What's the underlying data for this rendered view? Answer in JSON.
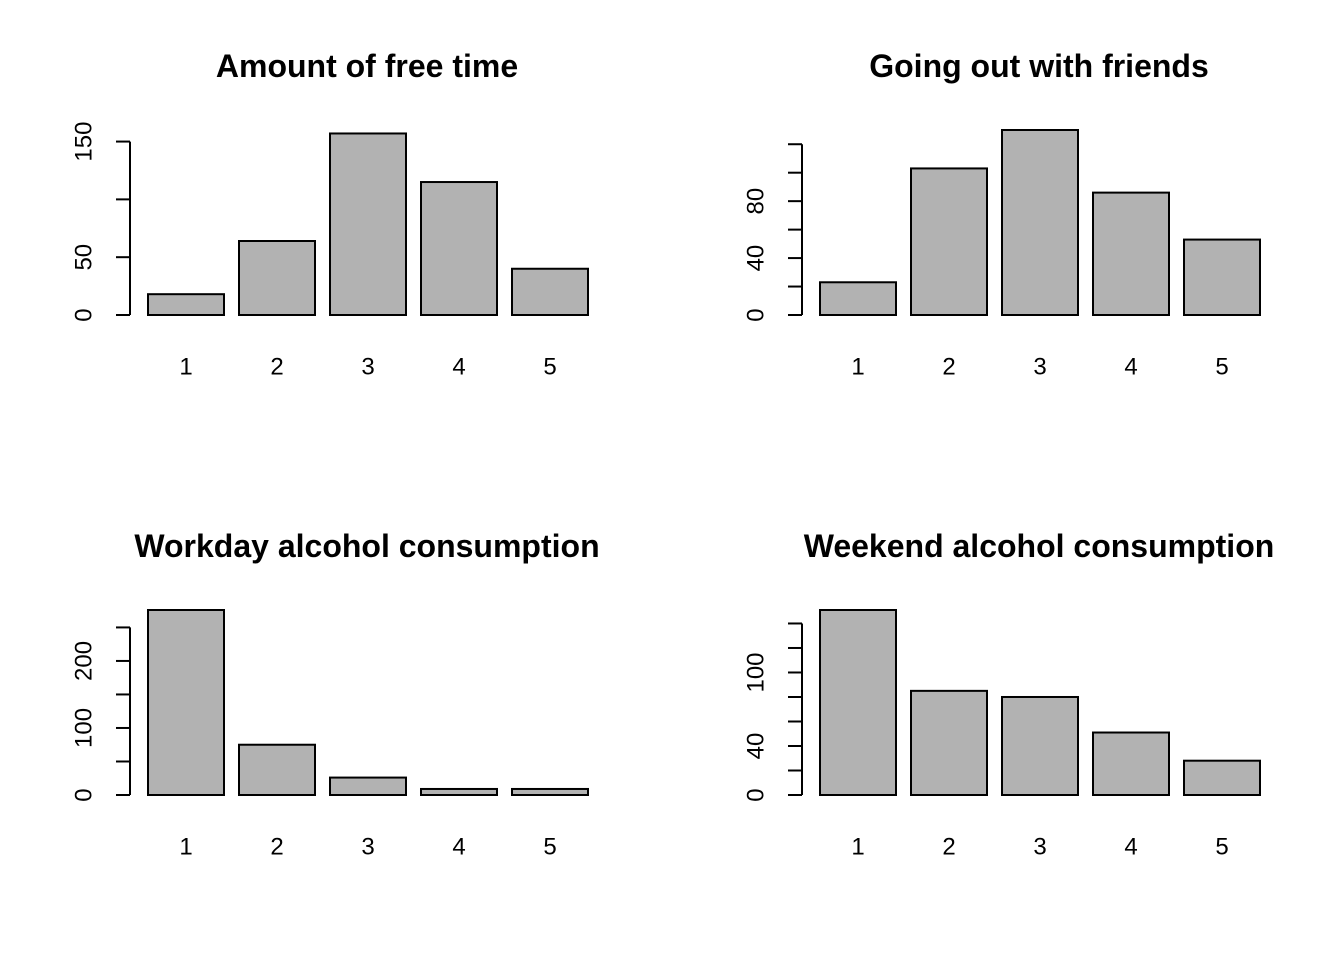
{
  "colors": {
    "bar_fill": "#b2b2b2",
    "bar_stroke": "#000000",
    "background": "#ffffff"
  },
  "chart_data": [
    {
      "type": "bar",
      "title": "Amount of free time",
      "xlabel": "",
      "ylabel": "",
      "categories": [
        "1",
        "2",
        "3",
        "4",
        "5"
      ],
      "values": [
        18,
        64,
        157,
        115,
        40
      ],
      "ylim": [
        0,
        160
      ],
      "yticks": [
        0,
        50,
        100,
        150
      ],
      "ytick_labels": [
        "0",
        "50",
        "",
        "150"
      ],
      "grid": false,
      "legend": "none"
    },
    {
      "type": "bar",
      "title": "Going out with friends",
      "xlabel": "",
      "ylabel": "",
      "categories": [
        "1",
        "2",
        "3",
        "4",
        "5"
      ],
      "values": [
        23,
        103,
        130,
        86,
        53
      ],
      "ylim": [
        0,
        130
      ],
      "yticks": [
        0,
        20,
        40,
        60,
        80,
        100,
        120
      ],
      "ytick_labels": [
        "0",
        "",
        "40",
        "",
        "80",
        "",
        ""
      ],
      "grid": false,
      "legend": "none"
    },
    {
      "type": "bar",
      "title": "Workday alcohol consumption",
      "xlabel": "",
      "ylabel": "",
      "categories": [
        "1",
        "2",
        "3",
        "4",
        "5"
      ],
      "values": [
        276,
        75,
        26,
        9,
        9
      ],
      "ylim": [
        0,
        276
      ],
      "yticks": [
        0,
        50,
        100,
        150,
        200,
        250
      ],
      "ytick_labels": [
        "0",
        "",
        "100",
        "",
        "200",
        ""
      ],
      "grid": false,
      "legend": "none"
    },
    {
      "type": "bar",
      "title": "Weekend alcohol consumption",
      "xlabel": "",
      "ylabel": "",
      "categories": [
        "1",
        "2",
        "3",
        "4",
        "5"
      ],
      "values": [
        151,
        85,
        80,
        51,
        28
      ],
      "ylim": [
        0,
        151
      ],
      "yticks": [
        0,
        20,
        40,
        60,
        80,
        100,
        120,
        140
      ],
      "ytick_labels": [
        "0",
        "",
        "40",
        "",
        "",
        "100",
        "",
        ""
      ],
      "grid": false,
      "legend": "none"
    }
  ]
}
